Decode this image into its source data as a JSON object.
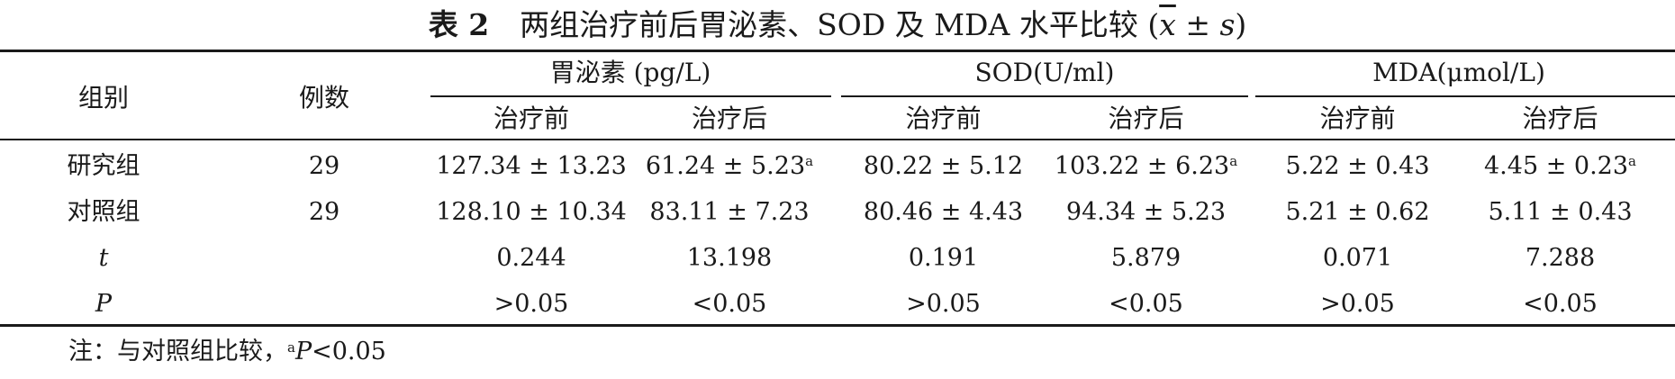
{
  "caption": {
    "number": "表 2",
    "title": "两组治疗前后胃泌素、SOD 及 MDA 水平比较 (",
    "mean_symbol": "x",
    "pm": " ± ",
    "sd_symbol": "s",
    "close": ")"
  },
  "table": {
    "col_group": "组别",
    "col_n": "例数",
    "groups": [
      {
        "label": "胃泌素 (pg/L)",
        "before": "治疗前",
        "after": "治疗后"
      },
      {
        "label": "SOD(U/ml)",
        "before": "治疗前",
        "after": "治疗后"
      },
      {
        "label": "MDA(μmol/L)",
        "before": "治疗前",
        "after": "治疗后"
      }
    ],
    "rows": [
      {
        "group": "研究组",
        "n": "29",
        "cells": [
          {
            "v": "127.34 ± 13.23",
            "sup": ""
          },
          {
            "v": "61.24 ± 5.23",
            "sup": "a"
          },
          {
            "v": "80.22 ± 5.12",
            "sup": ""
          },
          {
            "v": "103.22 ± 6.23",
            "sup": "a"
          },
          {
            "v": "5.22 ± 0.43",
            "sup": ""
          },
          {
            "v": "4.45 ± 0.23",
            "sup": "a"
          }
        ]
      },
      {
        "group": "对照组",
        "n": "29",
        "cells": [
          {
            "v": "128.10 ± 10.34",
            "sup": ""
          },
          {
            "v": "83.11 ± 7.23",
            "sup": ""
          },
          {
            "v": "80.46 ± 4.43",
            "sup": ""
          },
          {
            "v": "94.34 ± 5.23",
            "sup": ""
          },
          {
            "v": "5.21 ± 0.62",
            "sup": ""
          },
          {
            "v": "5.11 ± 0.43",
            "sup": ""
          }
        ]
      },
      {
        "group": "t",
        "n": "",
        "cells": [
          {
            "v": "0.244",
            "sup": ""
          },
          {
            "v": "13.198",
            "sup": ""
          },
          {
            "v": "0.191",
            "sup": ""
          },
          {
            "v": "5.879",
            "sup": ""
          },
          {
            "v": "0.071",
            "sup": ""
          },
          {
            "v": "7.288",
            "sup": ""
          }
        ]
      },
      {
        "group": "P",
        "n": "",
        "cells": [
          {
            "v": ">0.05",
            "sup": ""
          },
          {
            "v": "<0.05",
            "sup": ""
          },
          {
            "v": ">0.05",
            "sup": ""
          },
          {
            "v": "<0.05",
            "sup": ""
          },
          {
            "v": ">0.05",
            "sup": ""
          },
          {
            "v": "<0.05",
            "sup": ""
          }
        ]
      }
    ]
  },
  "note": {
    "prefix": "注：与对照组比较，",
    "sup": "a",
    "italic": "P",
    "rest": "<0.05"
  }
}
